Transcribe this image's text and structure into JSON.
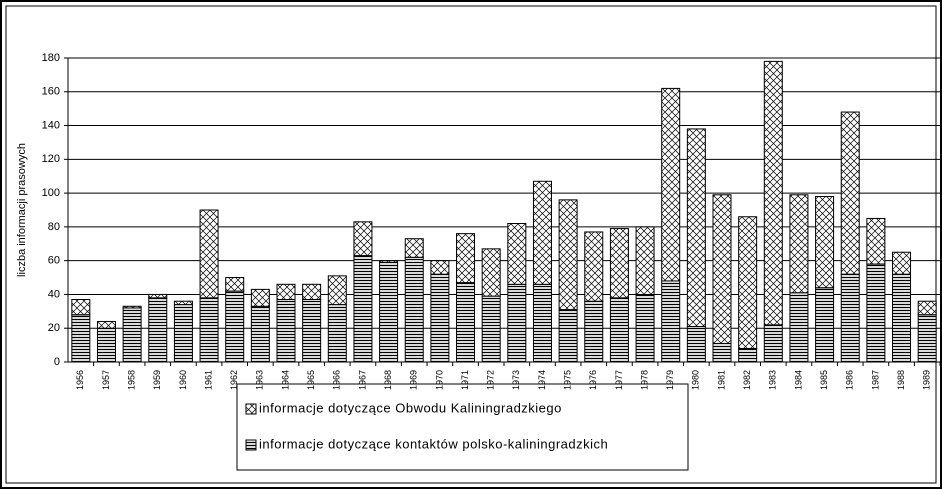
{
  "chart_data": {
    "type": "stacked-bar",
    "y_label": "liczba informacji prasowych",
    "categories": [
      "1956",
      "1957",
      "1958",
      "1959",
      "1960",
      "1961",
      "1962",
      "1963",
      "1964",
      "1965",
      "1966",
      "1967",
      "1968",
      "1969",
      "1970",
      "1971",
      "1972",
      "1973",
      "1974",
      "1975",
      "1976",
      "1977",
      "1978",
      "1979",
      "1980",
      "1981",
      "1982",
      "1983",
      "1984",
      "1985",
      "1986",
      "1987",
      "1988",
      "1989"
    ],
    "series": [
      {
        "name": "informacje dotyczące kontaktów polsko-kaliningradzkich",
        "color": "#000000",
        "values": [
          28,
          20,
          32,
          38,
          34,
          38,
          42,
          33,
          37,
          37,
          34,
          63,
          59,
          62,
          52,
          47,
          39,
          46,
          46,
          31,
          36,
          38,
          40,
          48,
          21,
          11,
          8,
          22,
          41,
          44,
          52,
          58,
          52,
          28
        ]
      },
      {
        "name": "informacje dotyczące Obwodu Kaliningradzkiego",
        "color": "#000000",
        "values": [
          9,
          4,
          1,
          2,
          2,
          52,
          8,
          10,
          9,
          9,
          17,
          20,
          1,
          11,
          8,
          29,
          28,
          36,
          61,
          65,
          41,
          41,
          40,
          114,
          117,
          88,
          78,
          156,
          58,
          54,
          96,
          27,
          13,
          8
        ]
      }
    ],
    "ylim": [
      0,
      180
    ],
    "yticks": [
      0,
      20,
      40,
      60,
      80,
      100,
      120,
      140,
      160,
      180
    ],
    "grid": true
  }
}
